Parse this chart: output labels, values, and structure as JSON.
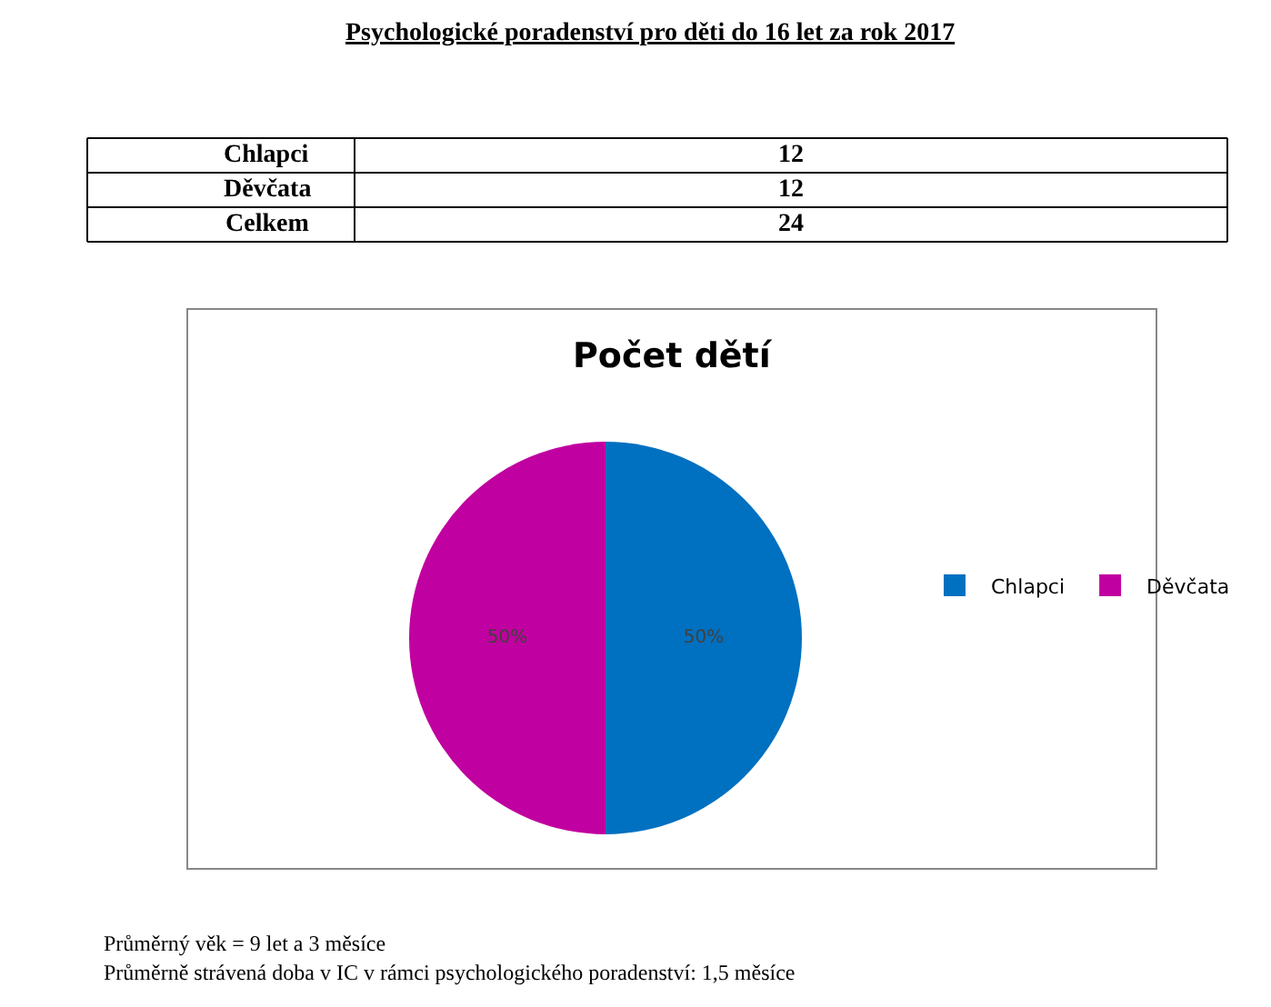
{
  "chart_data": [
    {
      "type": "other",
      "title": "Psychologické poradenství pro děti do 16 let za rok 2017",
      "categories": [
        "Chlapci",
        "Děvčata",
        "Celkem"
      ],
      "values": [
        12,
        12,
        24
      ],
      "data_labels": true
    },
    {
      "type": "pie",
      "title": "Počet dětí",
      "categories": [
        "Chlapci",
        "Děvčata"
      ],
      "values": [
        50,
        50
      ],
      "colors": [
        "#0070c0",
        "#c000a0"
      ],
      "value_labels": [
        "50%",
        "50%"
      ],
      "legend": "right",
      "annotations": [
        "Průměrný věk = 9 let a 3 měsíce",
        "Průměrně strávená doba v IC v rámci psychologického poradenství: 1,5 měsíce"
      ]
    }
  ]
}
